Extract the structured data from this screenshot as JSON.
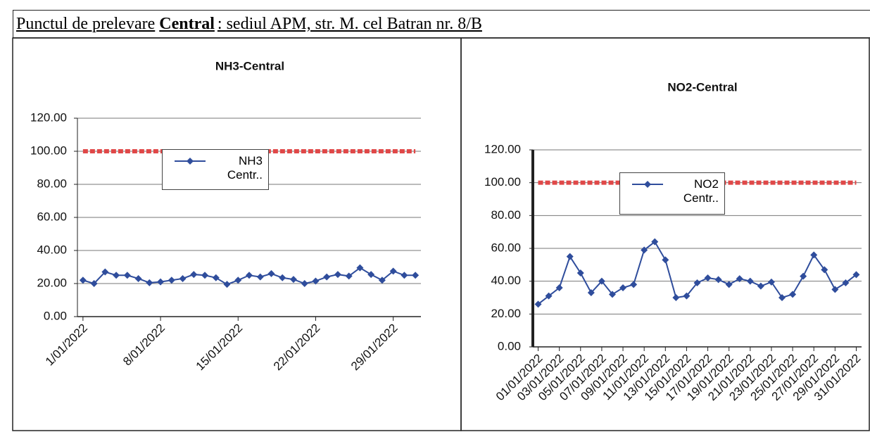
{
  "header": {
    "title": [
      "Punctul de prelevare",
      "Central",
      ": sediul APM, str. M. cel Batran nr. 8/B"
    ]
  },
  "chart_data": [
    {
      "type": "line",
      "title": "NH3-Central",
      "categories": [
        "1/01/2022",
        null,
        null,
        null,
        null,
        null,
        null,
        "8/01/2022",
        null,
        null,
        null,
        null,
        null,
        null,
        "15/01/2022",
        null,
        null,
        null,
        null,
        null,
        null,
        "22/01/2022",
        null,
        null,
        null,
        null,
        null,
        null,
        "29/01/2022",
        null,
        null
      ],
      "series": [
        {
          "name": "NH3 Centr..",
          "color": "#2f4d9c",
          "values": [
            22,
            20,
            27,
            25,
            25,
            23,
            20.5,
            21,
            22,
            23,
            25.5,
            25,
            23.5,
            19.5,
            22,
            25,
            24,
            26,
            23.5,
            22.5,
            20,
            21.5,
            24,
            25.5,
            24.5,
            29.5,
            25.5,
            22,
            27.5,
            25,
            25
          ]
        },
        {
          "color": "#e04848",
          "values": [
            100,
            100,
            100,
            100,
            100,
            100,
            100,
            100,
            100,
            100,
            100,
            100,
            100,
            100,
            100,
            100,
            100,
            100,
            100,
            100,
            100,
            100,
            100,
            100,
            100,
            100,
            100,
            100,
            100,
            100,
            100
          ]
        }
      ],
      "ylim": [
        0,
        120
      ],
      "yticks": [
        {
          "value": 0,
          "label": "0.00"
        },
        {
          "value": 20,
          "label": "20.00"
        },
        {
          "value": 40,
          "label": "40.00"
        },
        {
          "value": 60,
          "label": "60.00"
        },
        {
          "value": 80,
          "label": "80.00"
        },
        {
          "value": 100,
          "label": "100.00"
        },
        {
          "value": 120,
          "label": "120.00"
        }
      ],
      "grid": true
    },
    {
      "type": "line",
      "title": "NO2-Central",
      "categories": [
        "01/01/2022",
        null,
        "03/01/2022",
        null,
        "05/01/2022",
        null,
        "07/01/2022",
        null,
        "09/01/2022",
        null,
        "11/01/2022",
        null,
        "13/01/2022",
        null,
        "15/01/2022",
        null,
        "17/01/2022",
        null,
        "19/01/2022",
        null,
        "21/01/2022",
        null,
        "23/01/2022",
        null,
        "25/01/2022",
        null,
        "27/01/2022",
        null,
        "29/01/2022",
        null,
        "31/01/2022"
      ],
      "series": [
        {
          "name": "NO2 Centr..",
          "color": "#2f4d9c",
          "values": [
            26,
            31,
            36,
            55,
            45,
            33,
            40,
            32,
            36,
            38,
            59,
            64,
            53,
            30,
            31,
            39,
            42,
            41,
            38,
            41.5,
            40,
            37,
            39.5,
            30,
            32,
            43,
            56,
            47,
            35,
            39,
            44
          ]
        },
        {
          "color": "#e04848",
          "values": [
            100,
            100,
            100,
            100,
            100,
            100,
            100,
            100,
            100,
            100,
            100,
            100,
            100,
            100,
            100,
            100,
            100,
            100,
            100,
            100,
            100,
            100,
            100,
            100,
            100,
            100,
            100,
            100,
            100,
            100,
            100
          ]
        }
      ],
      "ylim": [
        0,
        120
      ],
      "yticks": [
        {
          "value": 0,
          "label": "0.00"
        },
        {
          "value": 20,
          "label": "20.00"
        },
        {
          "value": 40,
          "label": "40.00"
        },
        {
          "value": 60,
          "label": "60.00"
        },
        {
          "value": 80,
          "label": "80.00"
        },
        {
          "value": 100,
          "label": "100.00"
        },
        {
          "value": 120,
          "label": "120.00"
        }
      ],
      "grid": true
    }
  ]
}
